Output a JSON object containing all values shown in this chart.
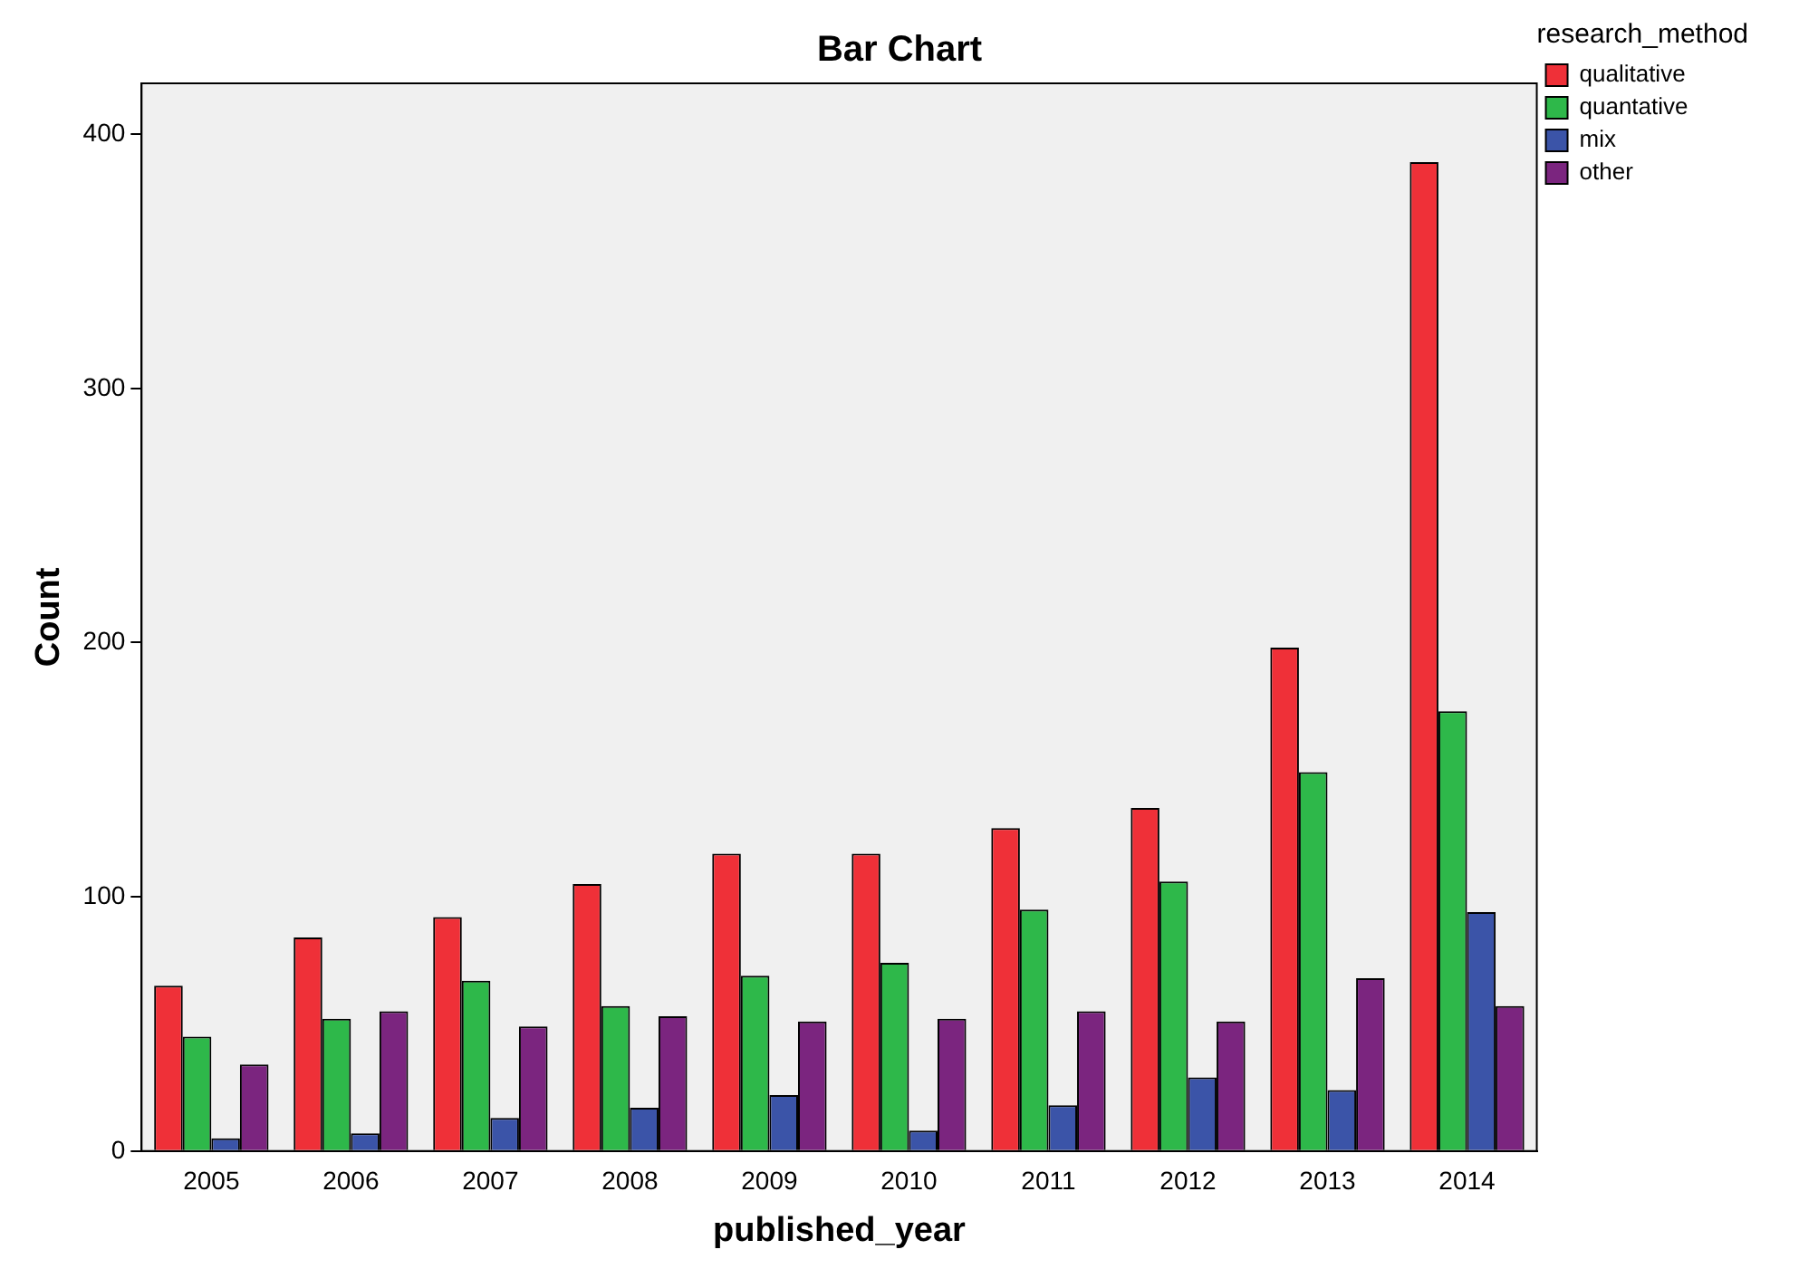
{
  "chart_data": {
    "type": "bar",
    "title": "Bar Chart",
    "xlabel": "published_year",
    "ylabel": "Count",
    "legend_title": "research_method",
    "categories": [
      "2005",
      "2006",
      "2007",
      "2008",
      "2009",
      "2010",
      "2011",
      "2012",
      "2013",
      "2014"
    ],
    "series": [
      {
        "name": "qualitative",
        "color": "#ef3038",
        "values": [
          65,
          84,
          92,
          105,
          117,
          117,
          127,
          135,
          198,
          389
        ]
      },
      {
        "name": "quantative",
        "color": "#2eb84a",
        "values": [
          45,
          52,
          67,
          57,
          69,
          74,
          95,
          106,
          149,
          173
        ]
      },
      {
        "name": "mix",
        "color": "#3b54a8",
        "values": [
          5,
          7,
          13,
          17,
          22,
          8,
          18,
          29,
          24,
          94
        ]
      },
      {
        "name": "other",
        "color": "#7b257f",
        "values": [
          34,
          55,
          49,
          53,
          51,
          52,
          55,
          51,
          68,
          57
        ]
      }
    ],
    "ylim": [
      0,
      420
    ],
    "yticks": [
      0,
      100,
      200,
      300,
      400
    ],
    "grid": false,
    "legend": "top right"
  }
}
